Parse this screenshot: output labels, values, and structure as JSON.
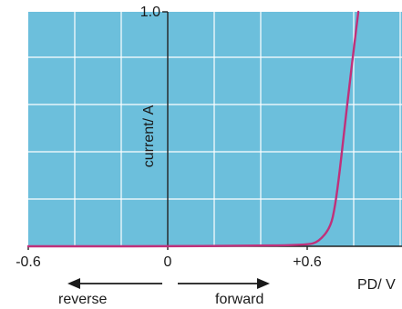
{
  "chart_data": {
    "type": "line",
    "title": "",
    "xlabel": "PD/ V",
    "ylabel": "current/ A",
    "xlim": [
      -0.6,
      1.1
    ],
    "ylim": [
      0,
      1.0
    ],
    "grid": true,
    "x_tick_labels": [
      {
        "value": -0.6,
        "label": "-0.6"
      },
      {
        "value": 0,
        "label": "0"
      },
      {
        "value": 0.6,
        "label": "+0.6"
      }
    ],
    "y_tick_labels": [
      {
        "value": 1.0,
        "label": "1.0"
      }
    ],
    "annotations": {
      "reverse": "reverse",
      "forward": "forward"
    },
    "series": [
      {
        "color": "#c0307a",
        "x": [
          -0.6,
          -0.3,
          0,
          0.3,
          0.6,
          0.65,
          0.7,
          0.72,
          0.74,
          0.76,
          0.78,
          0.8,
          0.82
        ],
        "y": [
          0,
          0,
          0,
          0.002,
          0.005,
          0.02,
          0.08,
          0.17,
          0.32,
          0.5,
          0.67,
          0.84,
          1.0
        ]
      }
    ]
  },
  "colors": {
    "panel": "#6cbfdc",
    "grid": "#ffffff",
    "axis": "#222222",
    "curve": "#c0307a"
  }
}
